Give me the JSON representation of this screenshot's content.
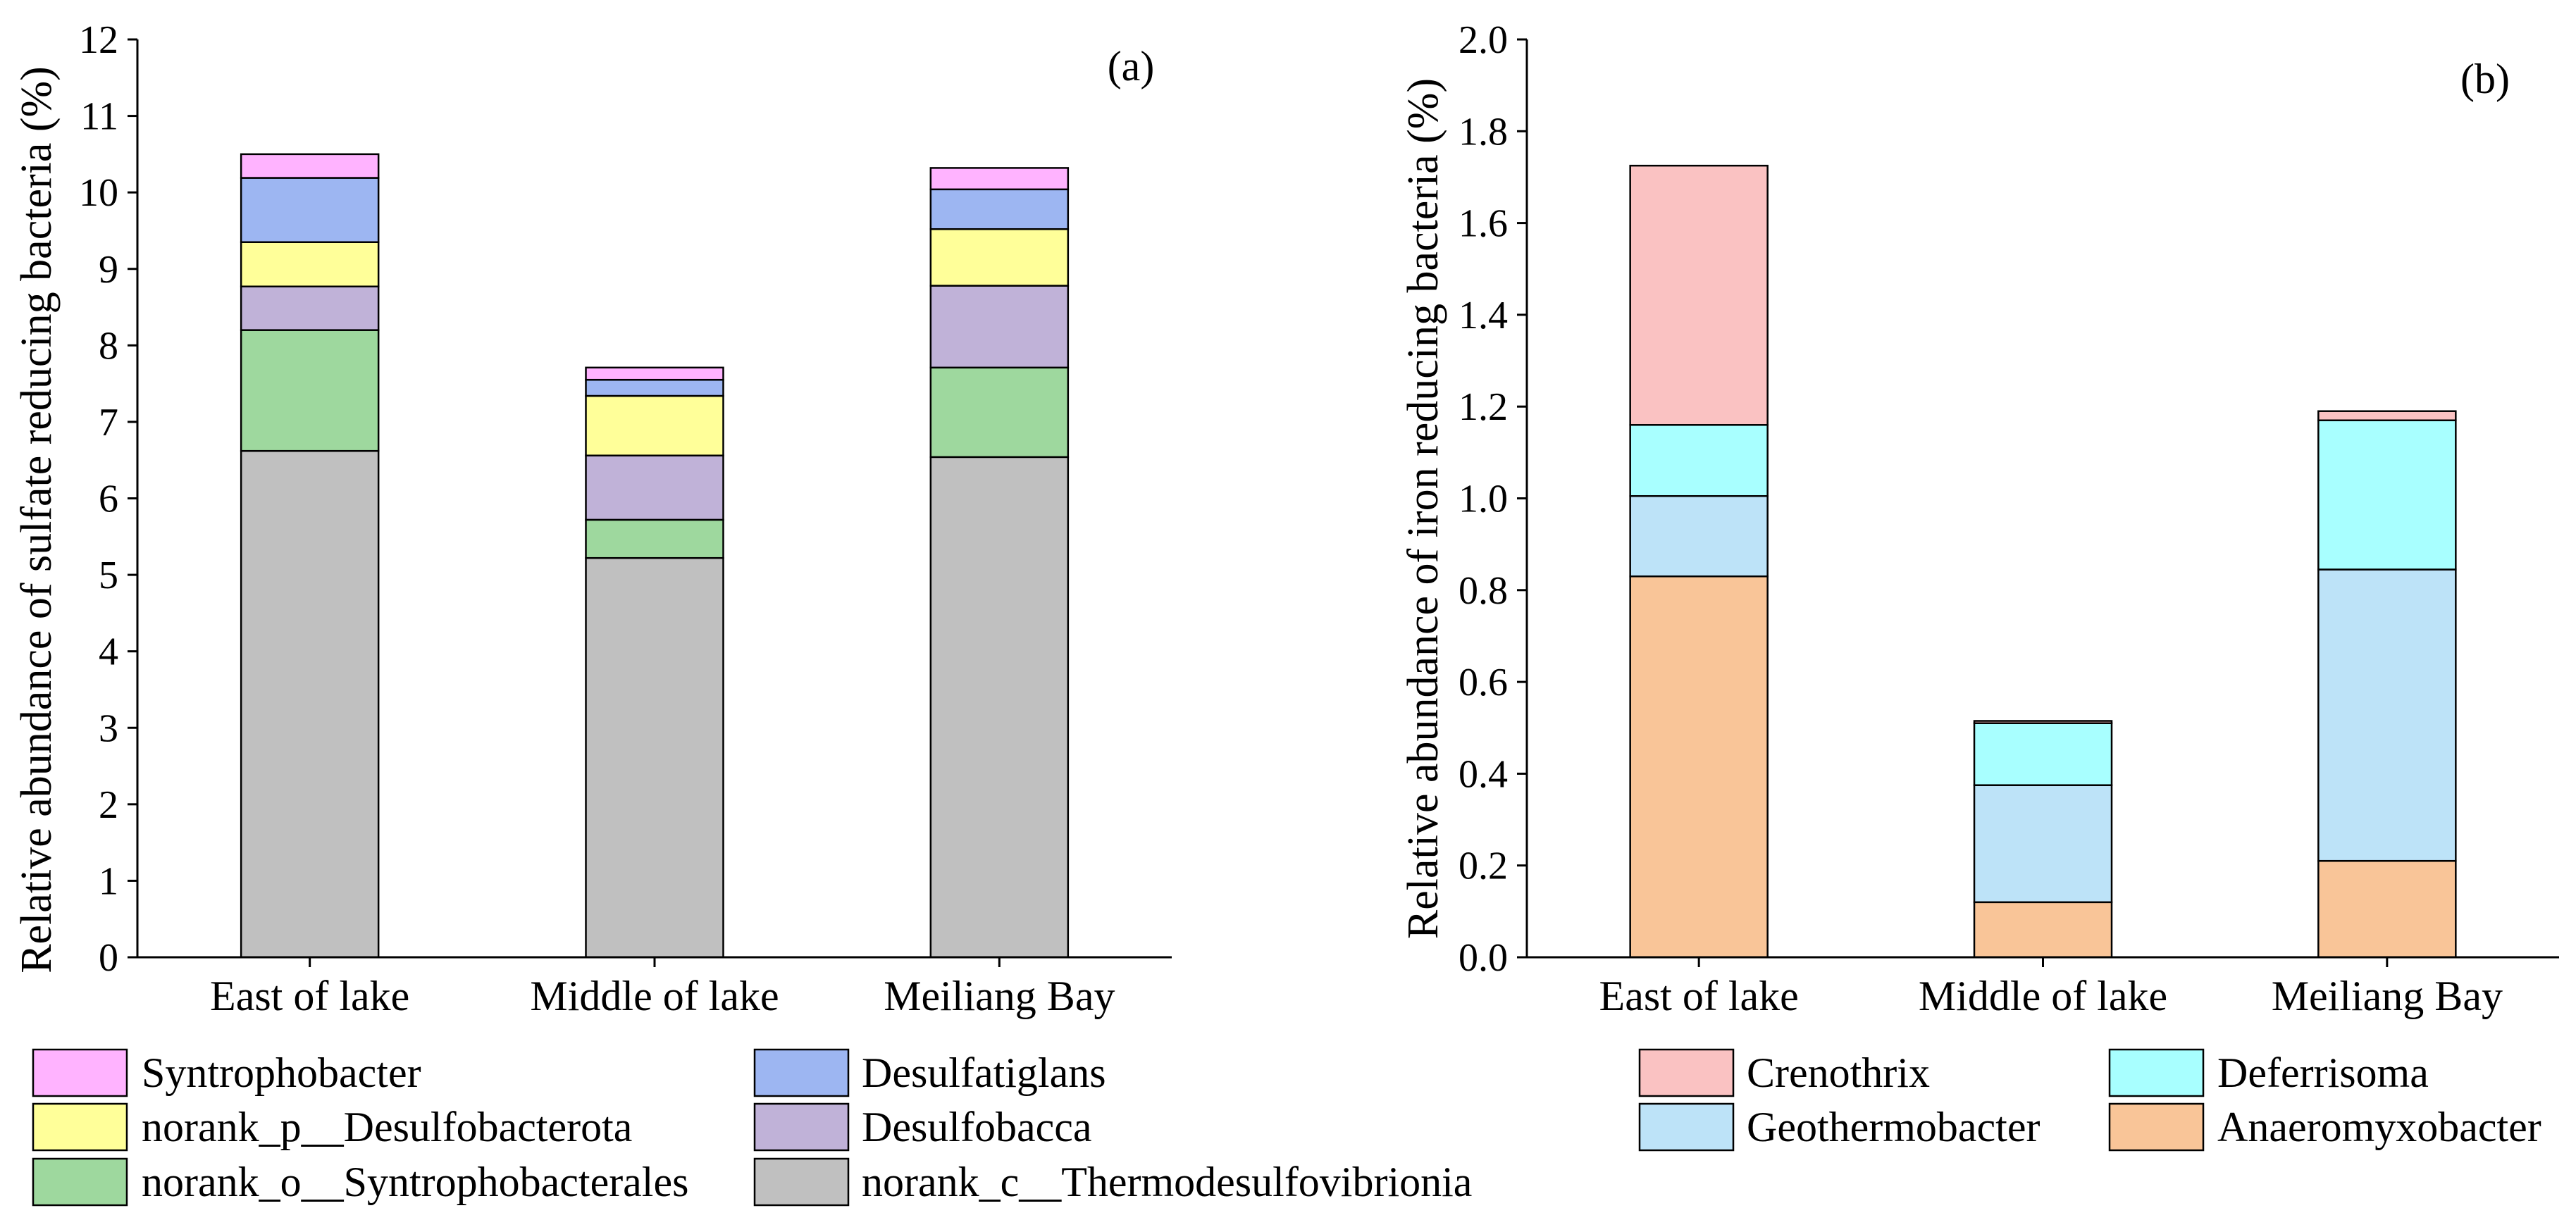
{
  "chart_data": [
    {
      "type": "bar",
      "stacked": true,
      "panel_label": "(a)",
      "categories": [
        "East of lake",
        "Middle of lake",
        "Meiliang Bay"
      ],
      "ylabel": "Relative abundance of sulfate reducing bacteria (%)",
      "ylim": [
        0,
        12
      ],
      "yticks": [
        "0",
        "1",
        "2",
        "3",
        "4",
        "5",
        "6",
        "7",
        "8",
        "9",
        "10",
        "11",
        "12"
      ],
      "legend_position": "bottom",
      "series": [
        {
          "name": "norank_c__Thermodesulfovibrionia",
          "color": "#C0C0C0",
          "values": [
            6.62,
            5.22,
            6.54
          ]
        },
        {
          "name": "norank_o__Syntrophobacterales",
          "color": "#9ED89E",
          "values": [
            1.58,
            0.5,
            1.17
          ]
        },
        {
          "name": "Desulfobacca",
          "color": "#C0B2D8",
          "values": [
            0.57,
            0.84,
            1.07
          ]
        },
        {
          "name": "norank_p__Desulfobacterota",
          "color": "#FFFF99",
          "values": [
            0.58,
            0.78,
            0.74
          ]
        },
        {
          "name": "Desulfatiglans",
          "color": "#9DB6F2",
          "values": [
            0.84,
            0.21,
            0.52
          ]
        },
        {
          "name": "Syntrophobacter",
          "color": "#FFB3FF",
          "values": [
            0.31,
            0.16,
            0.28
          ]
        }
      ]
    },
    {
      "type": "bar",
      "stacked": true,
      "panel_label": "(b)",
      "categories": [
        "East of lake",
        "Middle of lake",
        "Meiliang Bay"
      ],
      "ylabel": "Relative abundance of iron reducing bacteria (%)",
      "ylim": [
        0,
        2.0
      ],
      "yticks": [
        "0.0",
        "0.2",
        "0.4",
        "0.6",
        "0.8",
        "1.0",
        "1.2",
        "1.4",
        "1.6",
        "1.8",
        "2.0"
      ],
      "legend_position": "bottom",
      "series": [
        {
          "name": "Anaeromyxobacter",
          "color": "#F9C598",
          "values": [
            0.83,
            0.12,
            0.21
          ]
        },
        {
          "name": "Geothermobacter",
          "color": "#BDE3F8",
          "values": [
            0.175,
            0.255,
            0.635
          ]
        },
        {
          "name": "Deferrisoma",
          "color": "#A8FFFF",
          "values": [
            0.155,
            0.135,
            0.325
          ]
        },
        {
          "name": "Crenothrix",
          "color": "#FAC2C2",
          "values": [
            0.565,
            0.005,
            0.02
          ]
        }
      ]
    }
  ]
}
